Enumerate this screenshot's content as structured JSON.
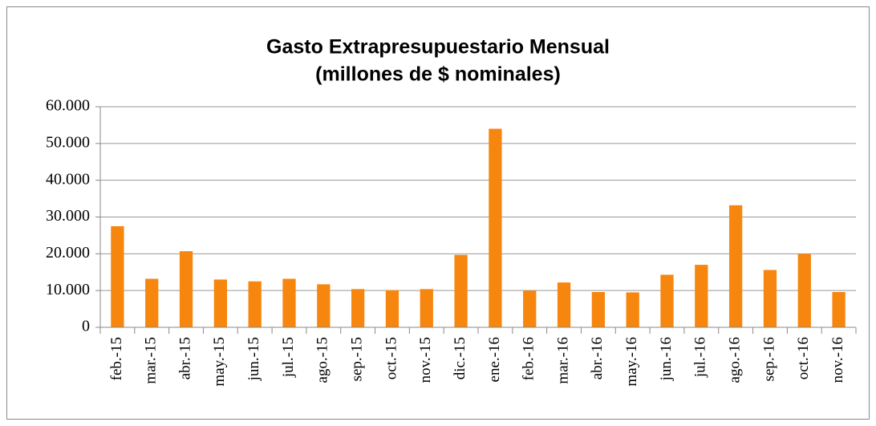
{
  "chart_data": {
    "type": "bar",
    "title": "Gasto Extrapresupuestario Mensual",
    "subtitle": "(millones de $ nominales)",
    "categories": [
      "feb.-15",
      "mar.-15",
      "abr.-15",
      "may.-15",
      "jun.-15",
      "jul.-15",
      "ago.-15",
      "sep.-15",
      "oct.-15",
      "nov.-15",
      "dic.-15",
      "ene.-16",
      "feb.-16",
      "mar.-16",
      "abr.-16",
      "may.-16",
      "jun.-16",
      "jul.-16",
      "ago.-16",
      "sep.-16",
      "oct.-16",
      "nov.-16"
    ],
    "values": [
      27500,
      13200,
      20700,
      13000,
      12500,
      13200,
      11700,
      10400,
      10100,
      10400,
      19700,
      54000,
      10000,
      12200,
      9600,
      9500,
      14300,
      17000,
      33200,
      15600,
      20000,
      9600
    ],
    "color": "#f7860f",
    "ylim": [
      0,
      60000
    ],
    "yticks": [
      0,
      {
        "value": 10000,
        "label": "10.000"
      },
      {
        "value": 20000,
        "label": "20.000"
      },
      {
        "value": 30000,
        "label": "30.000"
      },
      {
        "value": 40000,
        "label": "40.000"
      },
      {
        "value": 50000,
        "label": "50.000"
      },
      {
        "value": 60000,
        "label": "60.000"
      }
    ],
    "grid": true
  }
}
